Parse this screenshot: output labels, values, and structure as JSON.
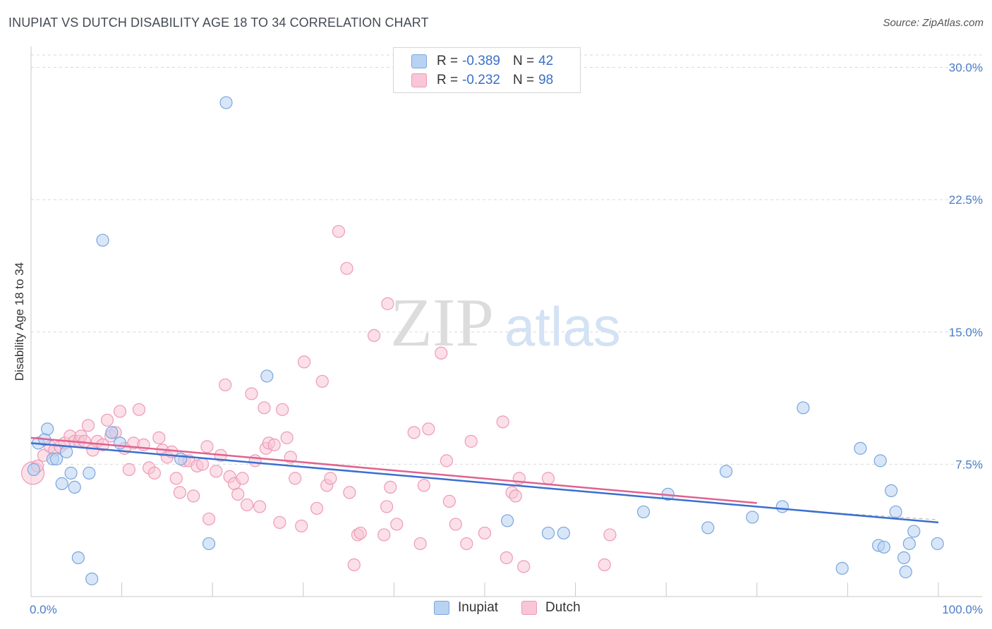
{
  "title": "INUPIAT VS DUTCH DISABILITY AGE 18 TO 34 CORRELATION CHART",
  "source": "Source: ZipAtlas.com",
  "watermark": {
    "zip": "ZIP",
    "atlas": "atlas"
  },
  "legend": {
    "rows": [
      {
        "r_label": "R =",
        "r_value": "-0.389",
        "n_label": "N =",
        "n_value": "42"
      },
      {
        "r_label": "R =",
        "r_value": "-0.232",
        "n_label": "N =",
        "n_value": "98"
      }
    ]
  },
  "bottom_legend": {
    "inupiat": "Inupiat",
    "dutch": "Dutch"
  },
  "colors": {
    "inupiat_fill": "#b8d2f2",
    "inupiat_stroke": "#7aa6de",
    "inupiat_line": "#3a6fd0",
    "dutch_fill": "#f8c6d6",
    "dutch_stroke": "#ee9ab6",
    "dutch_line": "#e0628f",
    "tick_label": "#4a7cc7",
    "grid": "#d9d9d9"
  },
  "chart_data": {
    "type": "scatter",
    "title": "INUPIAT VS DUTCH DISABILITY AGE 18 TO 34 CORRELATION CHART",
    "xlabel": "",
    "ylabel": "Disability Age 18 to 34",
    "xlim": [
      0,
      100
    ],
    "ylim": [
      0,
      30.7
    ],
    "x_tick_labels": [
      "0.0%",
      "100.0%"
    ],
    "y_ticks": [
      7.5,
      15.0,
      22.5,
      30.0
    ],
    "y_tick_labels": [
      "7.5%",
      "15.0%",
      "22.5%",
      "30.0%"
    ],
    "grid": true,
    "series": [
      {
        "name": "Inupiat",
        "r": -0.389,
        "n": 42,
        "trend": {
          "x": [
            0,
            100
          ],
          "y": [
            8.7,
            4.2
          ]
        },
        "points": [
          {
            "x": 0.3,
            "y": 7.2
          },
          {
            "x": 0.8,
            "y": 8.7
          },
          {
            "x": 1.5,
            "y": 8.9
          },
          {
            "x": 1.8,
            "y": 9.5
          },
          {
            "x": 2.4,
            "y": 7.8
          },
          {
            "x": 2.8,
            "y": 7.8
          },
          {
            "x": 3.4,
            "y": 6.4
          },
          {
            "x": 3.9,
            "y": 8.2
          },
          {
            "x": 4.4,
            "y": 7.0
          },
          {
            "x": 4.8,
            "y": 6.2
          },
          {
            "x": 5.2,
            "y": 2.2
          },
          {
            "x": 6.4,
            "y": 7.0
          },
          {
            "x": 6.7,
            "y": 1.0
          },
          {
            "x": 7.9,
            "y": 20.2
          },
          {
            "x": 8.9,
            "y": 9.3
          },
          {
            "x": 9.8,
            "y": 8.7
          },
          {
            "x": 16.5,
            "y": 7.8
          },
          {
            "x": 19.6,
            "y": 3.0
          },
          {
            "x": 21.5,
            "y": 28.0
          },
          {
            "x": 26.0,
            "y": 12.5
          },
          {
            "x": 52.5,
            "y": 4.3
          },
          {
            "x": 57.0,
            "y": 3.6
          },
          {
            "x": 58.7,
            "y": 3.6
          },
          {
            "x": 67.5,
            "y": 4.8
          },
          {
            "x": 70.2,
            "y": 5.8
          },
          {
            "x": 74.6,
            "y": 3.9
          },
          {
            "x": 76.6,
            "y": 7.1
          },
          {
            "x": 79.5,
            "y": 4.5
          },
          {
            "x": 82.8,
            "y": 5.1
          },
          {
            "x": 85.1,
            "y": 10.7
          },
          {
            "x": 89.4,
            "y": 1.6
          },
          {
            "x": 91.4,
            "y": 8.4
          },
          {
            "x": 93.4,
            "y": 2.9
          },
          {
            "x": 93.6,
            "y": 7.7
          },
          {
            "x": 94.0,
            "y": 2.8
          },
          {
            "x": 94.8,
            "y": 6.0
          },
          {
            "x": 95.3,
            "y": 4.8
          },
          {
            "x": 96.2,
            "y": 2.2
          },
          {
            "x": 96.4,
            "y": 1.4
          },
          {
            "x": 96.8,
            "y": 3.0
          },
          {
            "x": 97.3,
            "y": 3.7
          },
          {
            "x": 99.9,
            "y": 3.0
          }
        ]
      },
      {
        "name": "Dutch",
        "r": -0.232,
        "n": 98,
        "trend": {
          "x": [
            0,
            80
          ],
          "y": [
            9.0,
            5.3
          ]
        },
        "points": [
          {
            "x": 0.2,
            "y": 7.0,
            "big": true
          },
          {
            "x": 0.7,
            "y": 7.4
          },
          {
            "x": 1.4,
            "y": 8.0
          },
          {
            "x": 2.1,
            "y": 8.5
          },
          {
            "x": 2.6,
            "y": 8.3
          },
          {
            "x": 3.2,
            "y": 8.5
          },
          {
            "x": 3.7,
            "y": 8.7
          },
          {
            "x": 4.3,
            "y": 9.1
          },
          {
            "x": 4.8,
            "y": 8.8
          },
          {
            "x": 5.3,
            "y": 8.8
          },
          {
            "x": 5.5,
            "y": 9.1
          },
          {
            "x": 5.9,
            "y": 8.8
          },
          {
            "x": 6.3,
            "y": 9.7
          },
          {
            "x": 6.8,
            "y": 8.3
          },
          {
            "x": 7.3,
            "y": 8.8
          },
          {
            "x": 7.9,
            "y": 8.6
          },
          {
            "x": 8.4,
            "y": 10.0
          },
          {
            "x": 8.8,
            "y": 9.1
          },
          {
            "x": 9.3,
            "y": 9.3
          },
          {
            "x": 9.8,
            "y": 10.5
          },
          {
            "x": 10.3,
            "y": 8.4
          },
          {
            "x": 10.8,
            "y": 7.2
          },
          {
            "x": 11.3,
            "y": 8.7
          },
          {
            "x": 11.9,
            "y": 10.6
          },
          {
            "x": 12.4,
            "y": 8.6
          },
          {
            "x": 13.0,
            "y": 7.3
          },
          {
            "x": 13.6,
            "y": 7.0
          },
          {
            "x": 14.1,
            "y": 9.0
          },
          {
            "x": 14.5,
            "y": 8.3
          },
          {
            "x": 15.0,
            "y": 7.9
          },
          {
            "x": 15.5,
            "y": 8.2
          },
          {
            "x": 16.0,
            "y": 6.7
          },
          {
            "x": 16.4,
            "y": 5.9
          },
          {
            "x": 16.9,
            "y": 7.7
          },
          {
            "x": 17.4,
            "y": 7.7
          },
          {
            "x": 17.9,
            "y": 5.7
          },
          {
            "x": 18.3,
            "y": 7.4
          },
          {
            "x": 18.9,
            "y": 7.5
          },
          {
            "x": 19.4,
            "y": 8.5
          },
          {
            "x": 19.6,
            "y": 4.4
          },
          {
            "x": 20.4,
            "y": 7.1
          },
          {
            "x": 20.9,
            "y": 8.0
          },
          {
            "x": 21.4,
            "y": 12.0
          },
          {
            "x": 21.9,
            "y": 6.8
          },
          {
            "x": 22.4,
            "y": 6.4
          },
          {
            "x": 22.8,
            "y": 5.8
          },
          {
            "x": 23.3,
            "y": 6.7
          },
          {
            "x": 23.8,
            "y": 5.2
          },
          {
            "x": 24.3,
            "y": 11.5
          },
          {
            "x": 24.7,
            "y": 7.7
          },
          {
            "x": 25.2,
            "y": 5.1
          },
          {
            "x": 25.7,
            "y": 10.7
          },
          {
            "x": 25.9,
            "y": 8.4
          },
          {
            "x": 26.2,
            "y": 8.7
          },
          {
            "x": 26.8,
            "y": 8.6
          },
          {
            "x": 27.4,
            "y": 4.2
          },
          {
            "x": 27.7,
            "y": 10.6
          },
          {
            "x": 28.2,
            "y": 9.0
          },
          {
            "x": 28.6,
            "y": 7.9
          },
          {
            "x": 29.1,
            "y": 6.7
          },
          {
            "x": 29.8,
            "y": 4.0
          },
          {
            "x": 30.1,
            "y": 13.3
          },
          {
            "x": 31.5,
            "y": 5.0
          },
          {
            "x": 32.1,
            "y": 12.2
          },
          {
            "x": 32.6,
            "y": 6.3
          },
          {
            "x": 33.0,
            "y": 6.7
          },
          {
            "x": 33.9,
            "y": 20.7
          },
          {
            "x": 34.8,
            "y": 18.6
          },
          {
            "x": 35.1,
            "y": 5.9
          },
          {
            "x": 35.6,
            "y": 1.8
          },
          {
            "x": 36.0,
            "y": 3.5
          },
          {
            "x": 36.3,
            "y": 3.6
          },
          {
            "x": 37.8,
            "y": 14.8
          },
          {
            "x": 38.9,
            "y": 3.5
          },
          {
            "x": 39.2,
            "y": 5.1
          },
          {
            "x": 39.3,
            "y": 16.6
          },
          {
            "x": 39.6,
            "y": 6.2
          },
          {
            "x": 40.3,
            "y": 4.1
          },
          {
            "x": 42.2,
            "y": 9.3
          },
          {
            "x": 42.9,
            "y": 3.0
          },
          {
            "x": 43.3,
            "y": 6.3
          },
          {
            "x": 43.8,
            "y": 9.5
          },
          {
            "x": 45.2,
            "y": 13.8
          },
          {
            "x": 45.8,
            "y": 7.7
          },
          {
            "x": 46.1,
            "y": 5.4
          },
          {
            "x": 46.8,
            "y": 4.1
          },
          {
            "x": 48.0,
            "y": 3.0
          },
          {
            "x": 48.5,
            "y": 8.8
          },
          {
            "x": 50.0,
            "y": 3.6
          },
          {
            "x": 52.0,
            "y": 9.9
          },
          {
            "x": 52.4,
            "y": 2.2
          },
          {
            "x": 53.0,
            "y": 5.9
          },
          {
            "x": 53.4,
            "y": 5.7
          },
          {
            "x": 53.8,
            "y": 6.7
          },
          {
            "x": 54.3,
            "y": 1.7
          },
          {
            "x": 57.0,
            "y": 6.7
          },
          {
            "x": 63.2,
            "y": 1.8
          },
          {
            "x": 63.8,
            "y": 3.5
          }
        ]
      }
    ]
  }
}
